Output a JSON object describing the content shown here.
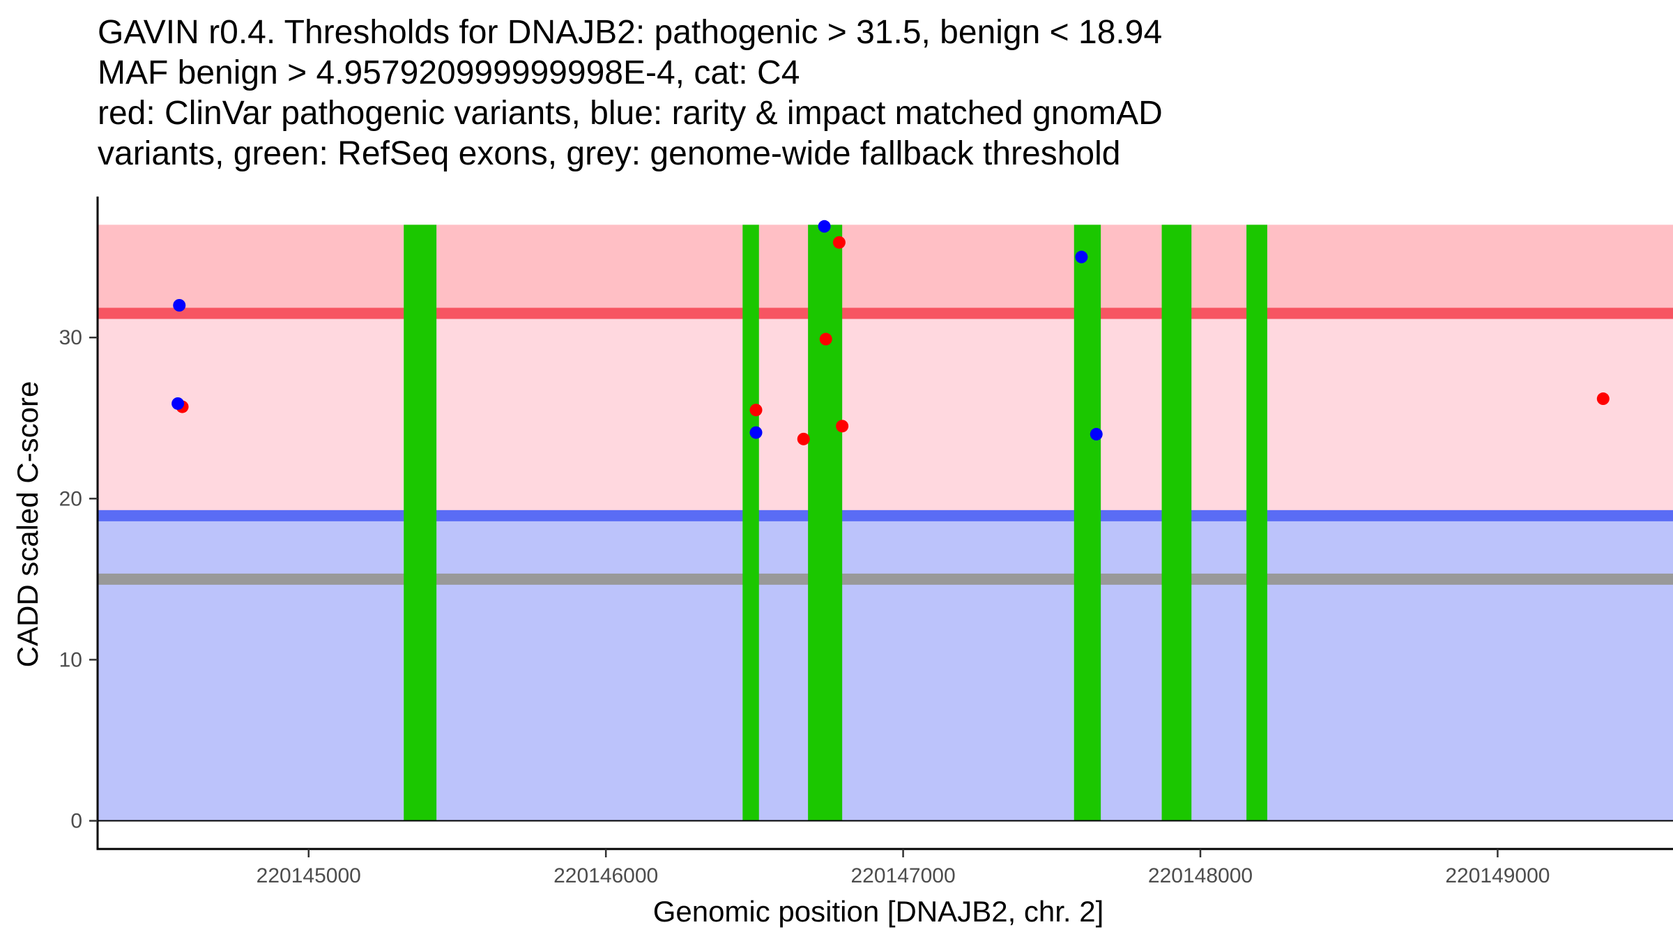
{
  "chart_data": {
    "type": "scatter",
    "title_lines": [
      "GAVIN r0.4. Thresholds for DNAJB2: pathogenic > 31.5, benign < 18.94",
      "MAF benign > 4.957920999999998E-4, cat: C4",
      "red: ClinVar pathogenic variants, blue: rarity & impact matched gnomAD",
      "variants, green: RefSeq exons, grey: genome-wide fallback threshold"
    ],
    "xlabel": "Genomic position [DNAJB2, chr. 2]",
    "ylabel": "CADD scaled C-score",
    "xlim": [
      220144290,
      220149590
    ],
    "ylim": [
      -1.75,
      38.75
    ],
    "x_ticks": [
      220145000,
      220146000,
      220147000,
      220148000,
      220149000
    ],
    "y_ticks": [
      0,
      10,
      20,
      30
    ],
    "regions": {
      "pathogenic_zone": {
        "from": 31.5,
        "to": 37,
        "color": "#ffbfc5"
      },
      "vus_zone": {
        "from": 18.94,
        "to": 31.5,
        "color": "#ffd8df"
      },
      "benign_zone": {
        "from": 0,
        "to": 18.94,
        "color": "#bcc3fb"
      }
    },
    "thresholds": [
      {
        "name": "pathogenic",
        "value": 31.5,
        "color": "#f75562"
      },
      {
        "name": "benign",
        "value": 18.94,
        "color": "#5a6cf5"
      },
      {
        "name": "genome-wide fallback",
        "value": 15,
        "color": "#999999"
      }
    ],
    "exons": {
      "color": "#1bc700",
      "ymax": 37,
      "ranges": [
        [
          220145320,
          220145430
        ],
        [
          220146460,
          220146515
        ],
        [
          220146680,
          220146795
        ],
        [
          220147575,
          220147665
        ],
        [
          220147870,
          220147970
        ],
        [
          220148155,
          220148225
        ]
      ]
    },
    "series": [
      {
        "name": "ClinVar pathogenic variants",
        "color": "#ff0000",
        "points": [
          [
            220144575,
            25.7
          ],
          [
            220146505,
            25.5
          ],
          [
            220146665,
            23.7
          ],
          [
            220146740,
            29.9
          ],
          [
            220146785,
            35.9
          ],
          [
            220146795,
            24.5
          ],
          [
            220149355,
            26.2
          ]
        ]
      },
      {
        "name": "rarity & impact matched gnomAD variants",
        "color": "#0000ff",
        "points": [
          [
            220144565,
            32
          ],
          [
            220144560,
            25.9
          ],
          [
            220146505,
            24.1
          ],
          [
            220146735,
            36.9
          ],
          [
            220147600,
            35
          ],
          [
            220147650,
            24
          ]
        ]
      }
    ]
  }
}
